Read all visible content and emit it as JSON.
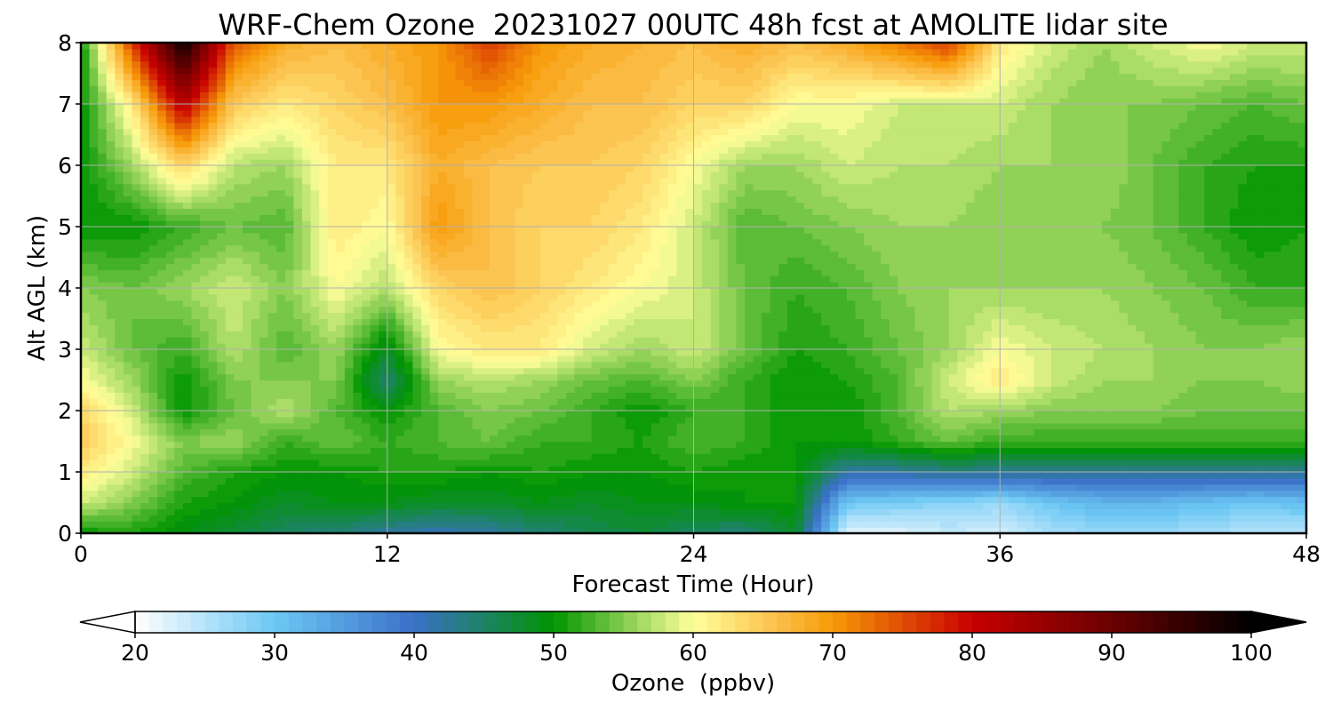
{
  "chart_data": {
    "type": "heatmap",
    "title": "WRF-Chem Ozone  20231027 00UTC 48h fcst at AMOLITE lidar site",
    "xlabel": "Forecast Time (Hour)",
    "ylabel": "Alt AGL (km)",
    "xlim": [
      0,
      48
    ],
    "ylim": [
      0,
      8
    ],
    "x_ticks": [
      "0",
      "12",
      "24",
      "36",
      "48"
    ],
    "y_ticks": [
      "0",
      "1",
      "2",
      "3",
      "4",
      "5",
      "6",
      "7",
      "8"
    ],
    "grid": true,
    "colorbar": {
      "label": "Ozone  (ppbv)",
      "range": [
        20,
        100
      ],
      "ticks": [
        "20",
        "30",
        "40",
        "50",
        "60",
        "70",
        "80",
        "90",
        "100"
      ],
      "extend": "both",
      "step": 1,
      "color_stops": [
        {
          "v": 20,
          "c": "#ffffff"
        },
        {
          "v": 30,
          "c": "#6cc8f4"
        },
        {
          "v": 40,
          "c": "#3a70c8"
        },
        {
          "v": 50,
          "c": "#009500"
        },
        {
          "v": 56,
          "c": "#9ed85e"
        },
        {
          "v": 60,
          "c": "#ffff9a"
        },
        {
          "v": 66,
          "c": "#fcc04a"
        },
        {
          "v": 70,
          "c": "#f79a08"
        },
        {
          "v": 80,
          "c": "#c80000"
        },
        {
          "v": 90,
          "c": "#6a0000"
        },
        {
          "v": 100,
          "c": "#000000"
        }
      ]
    },
    "x_hours": [
      0,
      2,
      4,
      6,
      8,
      10,
      12,
      14,
      16,
      18,
      20,
      22,
      24,
      26,
      28,
      30,
      32,
      34,
      36,
      38,
      40,
      42,
      44,
      46,
      48
    ],
    "z_km": [
      0,
      0.5,
      1,
      1.5,
      2,
      2.5,
      3,
      4,
      5,
      6,
      7,
      8
    ],
    "ozone_ppbv": [
      [
        50,
        51,
        49,
        47,
        45,
        44,
        42,
        41,
        42,
        44,
        46,
        47,
        45,
        44,
        48,
        22,
        22,
        24,
        23,
        26,
        27,
        27,
        26,
        25,
        25
      ],
      [
        58,
        55,
        51,
        50,
        48,
        49,
        49,
        48,
        48,
        49,
        48,
        49,
        49,
        50,
        50,
        30,
        29,
        28,
        27,
        30,
        32,
        32,
        31,
        30,
        31
      ],
      [
        62,
        58,
        53,
        51,
        50,
        50,
        51,
        51,
        50,
        51,
        50,
        50,
        51,
        50,
        50,
        42,
        42,
        43,
        43,
        43,
        43,
        43,
        43,
        43,
        43
      ],
      [
        65,
        60,
        55,
        56,
        52,
        54,
        52,
        53,
        54,
        52,
        52,
        51,
        53,
        52,
        50,
        50,
        52,
        54,
        52,
        52,
        52,
        52,
        52,
        52,
        52
      ],
      [
        64,
        58,
        50,
        54,
        57,
        53,
        50,
        53,
        55,
        54,
        52,
        50,
        52,
        52,
        50,
        50,
        53,
        57,
        56,
        55,
        55,
        55,
        54,
        54,
        54
      ],
      [
        60,
        56,
        50,
        55,
        55,
        55,
        44,
        56,
        57,
        56,
        54,
        53,
        55,
        52,
        50,
        51,
        53,
        58,
        62,
        58,
        56,
        56,
        55,
        55,
        56
      ],
      [
        58,
        54,
        52,
        57,
        53,
        56,
        48,
        60,
        62,
        62,
        58,
        56,
        58,
        54,
        51,
        52,
        54,
        56,
        60,
        58,
        57,
        56,
        55,
        55,
        56
      ],
      [
        55,
        54,
        56,
        58,
        55,
        60,
        57,
        64,
        66,
        64,
        62,
        60,
        58,
        54,
        52,
        53,
        55,
        56,
        56,
        56,
        56,
        55,
        54,
        52,
        52
      ],
      [
        50,
        50,
        52,
        54,
        53,
        62,
        60,
        70,
        66,
        64,
        64,
        62,
        58,
        53,
        54,
        55,
        56,
        56,
        55,
        55,
        55,
        54,
        52,
        50,
        51
      ],
      [
        50,
        56,
        64,
        57,
        56,
        62,
        62,
        68,
        66,
        65,
        65,
        64,
        60,
        56,
        56,
        58,
        57,
        57,
        56,
        56,
        56,
        54,
        52,
        51,
        51
      ],
      [
        50,
        62,
        82,
        65,
        62,
        64,
        66,
        70,
        70,
        68,
        66,
        66,
        64,
        64,
        60,
        60,
        58,
        58,
        58,
        56,
        55,
        55,
        54,
        53,
        54
      ],
      [
        50,
        76,
        99,
        74,
        68,
        66,
        68,
        70,
        76,
        70,
        68,
        67,
        66,
        68,
        66,
        68,
        72,
        76,
        62,
        58,
        56,
        58,
        60,
        58,
        58
      ]
    ]
  }
}
